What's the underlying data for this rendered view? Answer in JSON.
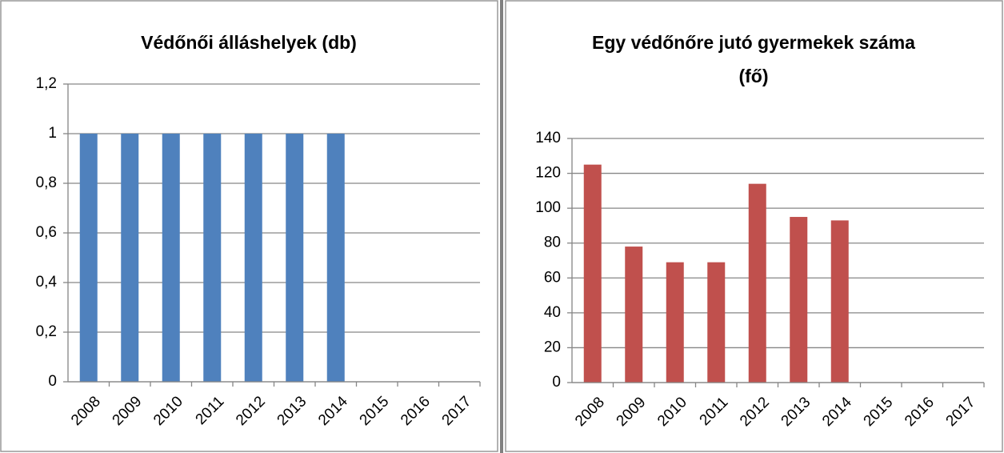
{
  "chart_data": [
    {
      "type": "bar",
      "title": "Védőnői álláshelyek (db)",
      "categories": [
        "2008",
        "2009",
        "2010",
        "2011",
        "2012",
        "2013",
        "2014",
        "2015",
        "2016",
        "2017"
      ],
      "values": [
        1,
        1,
        1,
        1,
        1,
        1,
        1,
        null,
        null,
        null
      ],
      "color": "#4f81bd",
      "ylim": [
        0,
        1.2
      ],
      "yticks": [
        0,
        {
          "value": 0.2,
          "label": "0,2"
        },
        {
          "value": 0.4,
          "label": "0,4"
        },
        {
          "value": 0.6,
          "label": "0,6"
        },
        {
          "value": 0.8,
          "label": "0,8"
        },
        1,
        {
          "value": 1.2,
          "label": "1,2"
        }
      ],
      "grid": true
    },
    {
      "type": "bar",
      "title": [
        "Egy védőnőre jutó gyermekek száma",
        "(fő)"
      ],
      "categories": [
        "2008",
        "2009",
        "2010",
        "2011",
        "2012",
        "2013",
        "2014",
        "2015",
        "2016",
        "2017"
      ],
      "values": [
        125,
        78,
        69,
        69,
        114,
        95,
        93,
        null,
        null,
        null
      ],
      "color": "#c0504d",
      "ylim": [
        0,
        140
      ],
      "yticks": [
        0,
        20,
        40,
        60,
        80,
        100,
        120,
        140
      ],
      "grid": true
    }
  ]
}
